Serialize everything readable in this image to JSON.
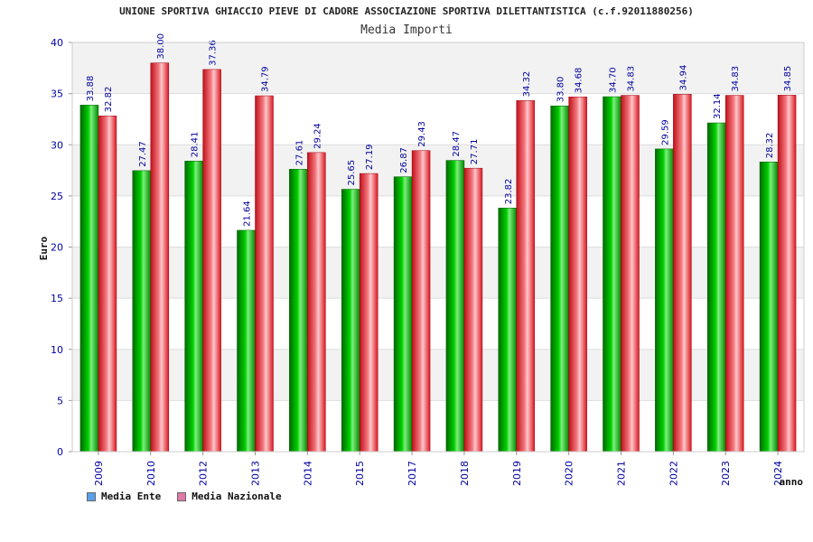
{
  "chart_data": {
    "type": "bar",
    "title": "UNIONE SPORTIVA GHIACCIO PIEVE DI CADORE ASSOCIAZIONE SPORTIVA DILETTANTISTICA (c.f.92011880256)",
    "subtitle": "Media Importi",
    "xlabel": "anno",
    "ylabel": "Euro",
    "ylim": [
      0,
      40
    ],
    "yticks": [
      0,
      5,
      10,
      15,
      20,
      25,
      30,
      35,
      40
    ],
    "grid": true,
    "legend_position": "bottom-left",
    "categories": [
      "2009",
      "2010",
      "2012",
      "2013",
      "2014",
      "2015",
      "2017",
      "2018",
      "2019",
      "2020",
      "2021",
      "2022",
      "2023",
      "2024"
    ],
    "series": [
      {
        "name": "Media Ente",
        "color": "#00b000",
        "legend_color": "#5aa0ea",
        "values": [
          33.88,
          27.47,
          28.41,
          21.64,
          27.61,
          25.65,
          26.87,
          28.47,
          23.82,
          33.8,
          34.7,
          29.59,
          32.14,
          28.32
        ],
        "labels": [
          "33.88",
          "27.47",
          "28.41",
          "21.64",
          "27.61",
          "25.65",
          "26.87",
          "28.47",
          "23.82",
          "33.80",
          "34.70",
          "29.59",
          "32.14",
          "28.32"
        ]
      },
      {
        "name": "Media Nazionale",
        "color": "#e8202a",
        "legend_color": "#e07aa8",
        "values": [
          32.82,
          38.0,
          37.36,
          34.79,
          29.24,
          27.19,
          29.43,
          27.71,
          34.32,
          34.68,
          34.83,
          34.94,
          34.83,
          34.85
        ],
        "labels": [
          "32.82",
          "38.00",
          "37.36",
          "34.79",
          "29.24",
          "27.19",
          "29.43",
          "27.71",
          "34.32",
          "34.68",
          "34.83",
          "34.94",
          "34.83",
          "34.85"
        ]
      }
    ]
  }
}
